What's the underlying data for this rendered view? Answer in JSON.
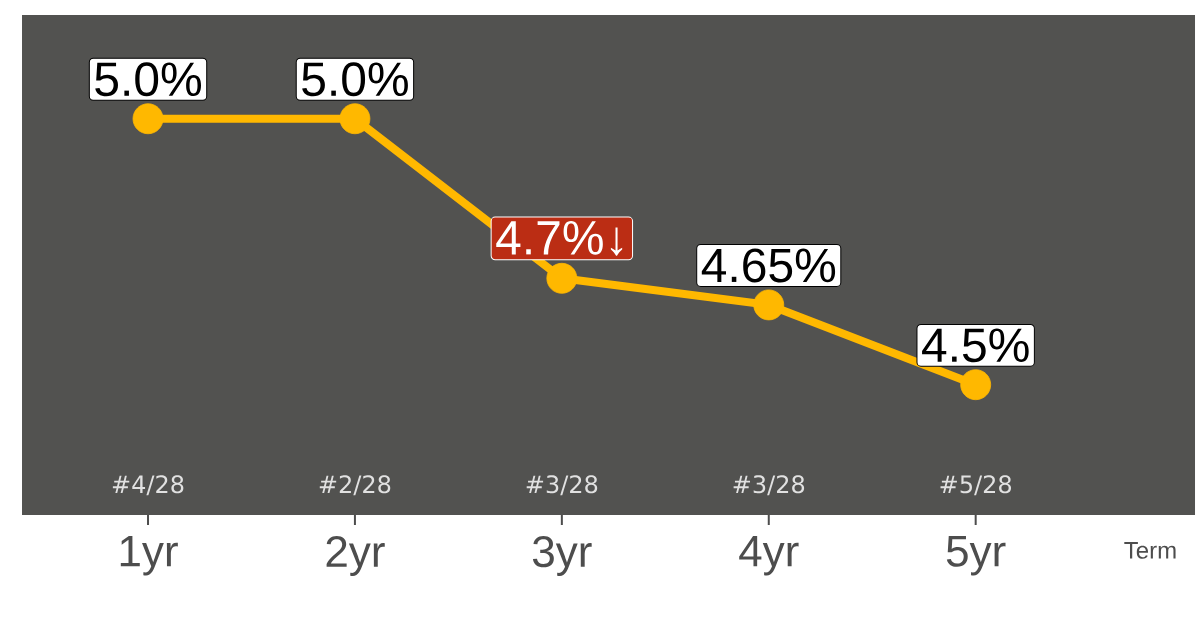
{
  "chart_data": {
    "type": "line",
    "xlabel": "Term",
    "categories": [
      "1yr",
      "2yr",
      "3yr",
      "4yr",
      "5yr"
    ],
    "series": [
      {
        "color": "#ffb800",
        "values": [
          5.0,
          5.0,
          4.7,
          4.65,
          4.5
        ],
        "value_labels": [
          "5.0%",
          "5.0%",
          null,
          "4.65%",
          "4.5%"
        ]
      }
    ],
    "marker": "circle",
    "line_style": "solid",
    "annotations": [
      {
        "text": "4.7%↓",
        "x": "3yr",
        "y": 4.7
      },
      "#4/28",
      "#2/28",
      "#3/28",
      "#3/28",
      "#5/28"
    ]
  }
}
